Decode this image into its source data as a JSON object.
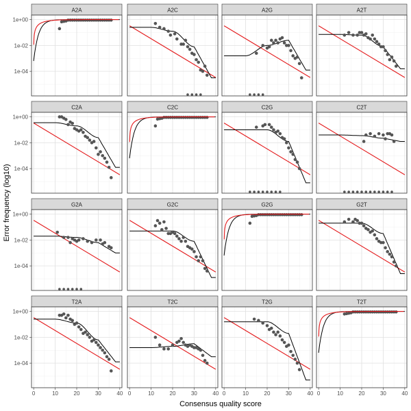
{
  "chart_data": {
    "type": "scatter",
    "xlabel": "Consensus quality score",
    "ylabel": "Error frequency (log10)",
    "x_ticks": [
      0,
      10,
      20,
      30,
      40
    ],
    "y_ticks": [
      "1e+00",
      "1e-02",
      "1e-04"
    ],
    "y_scale": "log10",
    "xlim": [
      -1,
      41
    ],
    "ylim": [
      -5.9,
      0.35
    ],
    "grid": true,
    "colors": {
      "points": "#555555",
      "fit_line": "#000000",
      "nominal_line": "#e41a1c",
      "strip": "#d9d9d9",
      "border": "#333333"
    },
    "panels": [
      {
        "name": "A2A",
        "diag": true,
        "y0": -0.7,
        "bfit": [
          0,
          0,
          0,
          0
        ]
      },
      {
        "name": "A2C",
        "diag": false,
        "y0": -0.6,
        "bfit": [
          -0.6,
          -0.9,
          -2.1,
          -4.5
        ],
        "zeros": [
          27,
          29,
          31,
          33
        ],
        "points": [
          [
            12,
            -0.3
          ],
          [
            14,
            -0.6
          ],
          [
            16,
            -0.7
          ],
          [
            18,
            -0.9
          ],
          [
            19,
            -1.2
          ],
          [
            21,
            -1.1
          ],
          [
            22,
            -1.5
          ],
          [
            24,
            -1.9
          ],
          [
            25,
            -1.9
          ],
          [
            26,
            -1.6
          ],
          [
            27,
            -2.1
          ],
          [
            28,
            -2.3
          ],
          [
            29,
            -2.6
          ],
          [
            30,
            -2.7
          ],
          [
            31,
            -3.1
          ],
          [
            32,
            -3.3
          ],
          [
            33,
            -3.9
          ],
          [
            34,
            -4.0
          ],
          [
            35,
            -3.6
          ],
          [
            36,
            -4.3
          ]
        ]
      },
      {
        "name": "A2G",
        "diag": false,
        "y0": -2.8,
        "bfit": [
          -2.8,
          -2.0,
          -1.6,
          -3.9
        ],
        "zeros": [
          12,
          14,
          16,
          18
        ],
        "points": [
          [
            15,
            -2.6
          ],
          [
            18,
            -2.0
          ],
          [
            20,
            -2.2
          ],
          [
            21,
            -2.1
          ],
          [
            22,
            -1.6
          ],
          [
            23,
            -1.8
          ],
          [
            24,
            -1.6
          ],
          [
            25,
            -1.8
          ],
          [
            26,
            -1.5
          ],
          [
            27,
            -1.4
          ],
          [
            28,
            -1.8
          ],
          [
            29,
            -2.0
          ],
          [
            30,
            -2.0
          ],
          [
            31,
            -2.4
          ],
          [
            32,
            -2.8
          ],
          [
            33,
            -3.0
          ],
          [
            34,
            -2.9
          ],
          [
            35,
            -3.4
          ],
          [
            36,
            -4.5
          ]
        ]
      },
      {
        "name": "A2T",
        "diag": false,
        "y0": -1.15,
        "bfit": [
          -1.15,
          -1.2,
          -2.1,
          -3.8
        ],
        "points": [
          [
            12,
            -1.2
          ],
          [
            14,
            -1.0
          ],
          [
            16,
            -1.2
          ],
          [
            18,
            -1.2
          ],
          [
            19,
            -1.0
          ],
          [
            20,
            -1.0
          ],
          [
            21,
            -1.2
          ],
          [
            22,
            -1.1
          ],
          [
            23,
            -1.4
          ],
          [
            24,
            -1.5
          ],
          [
            25,
            -1.2
          ],
          [
            26,
            -1.5
          ],
          [
            27,
            -1.7
          ],
          [
            28,
            -1.9
          ],
          [
            29,
            -2.1
          ],
          [
            30,
            -2.1
          ],
          [
            31,
            -2.4
          ],
          [
            32,
            -2.7
          ],
          [
            33,
            -3.1
          ],
          [
            34,
            -2.9
          ],
          [
            35,
            -3.2
          ],
          [
            36,
            -3.6
          ]
        ]
      },
      {
        "name": "C2A",
        "diag": false,
        "y0": -0.45,
        "bfit": [
          -0.45,
          -0.7,
          -1.6,
          -3.9
        ],
        "points": [
          [
            12,
            -0.0
          ],
          [
            13,
            0.0
          ],
          [
            14,
            -0.1
          ],
          [
            15,
            -0.2
          ],
          [
            16,
            -0.6
          ],
          [
            17,
            -0.4
          ],
          [
            18,
            -0.5
          ],
          [
            19,
            -0.9
          ],
          [
            20,
            -1.0
          ],
          [
            21,
            -1.1
          ],
          [
            22,
            -1.0
          ],
          [
            23,
            -1.2
          ],
          [
            24,
            -1.5
          ],
          [
            25,
            -1.6
          ],
          [
            26,
            -1.8
          ],
          [
            27,
            -2.0
          ],
          [
            28,
            -1.9
          ],
          [
            29,
            -2.4
          ],
          [
            30,
            -2.9
          ],
          [
            31,
            -2.7
          ],
          [
            32,
            -3.0
          ],
          [
            33,
            -3.2
          ],
          [
            34,
            -3.5
          ],
          [
            35,
            -3.9
          ],
          [
            36,
            -4.7
          ]
        ]
      },
      {
        "name": "C2C",
        "diag": true,
        "y0": -0.7,
        "bfit": [
          0,
          0,
          0,
          0
        ]
      },
      {
        "name": "C2G",
        "diag": false,
        "y0": -1.0,
        "bfit": [
          -1.0,
          -1.0,
          -1.9,
          -5.1
        ],
        "zeros": [
          12,
          14,
          16,
          18,
          20,
          22,
          24,
          26
        ],
        "points": [
          [
            15,
            -0.8
          ],
          [
            18,
            -0.7
          ],
          [
            19,
            -0.6
          ],
          [
            21,
            -0.6
          ],
          [
            22,
            -0.8
          ],
          [
            23,
            -1.0
          ],
          [
            24,
            -1.2
          ],
          [
            25,
            -1.1
          ],
          [
            26,
            -1.3
          ],
          [
            27,
            -1.6
          ],
          [
            28,
            -1.7
          ],
          [
            29,
            -2.0
          ],
          [
            30,
            -2.4
          ],
          [
            31,
            -2.7
          ],
          [
            32,
            -2.9
          ],
          [
            33,
            -3.3
          ],
          [
            34,
            -3.5
          ],
          [
            35,
            -4.0
          ]
        ]
      },
      {
        "name": "C2T",
        "diag": false,
        "y0": -1.4,
        "bfit": [
          -1.4,
          -1.45,
          -1.65,
          -1.9
        ],
        "zeros": [
          12,
          14,
          16,
          18,
          20,
          22,
          24,
          26,
          28,
          30,
          32,
          34
        ],
        "points": [
          [
            21,
            -1.9
          ],
          [
            22,
            -1.4
          ],
          [
            24,
            -1.3
          ],
          [
            26,
            -1.5
          ],
          [
            28,
            -1.3
          ],
          [
            30,
            -1.4
          ],
          [
            31,
            -1.7
          ],
          [
            32,
            -1.3
          ],
          [
            33,
            -1.3
          ],
          [
            34,
            -1.4
          ],
          [
            35,
            -1.9
          ]
        ]
      },
      {
        "name": "G2A",
        "diag": false,
        "y0": -1.7,
        "bfit": [
          -1.7,
          -1.8,
          -2.2,
          -3.0
        ],
        "zeros": [
          12,
          14,
          16,
          18,
          20,
          22
        ],
        "points": [
          [
            11,
            -1.4
          ],
          [
            14,
            -1.8
          ],
          [
            16,
            -1.8
          ],
          [
            17,
            -2.2
          ],
          [
            18,
            -1.9
          ],
          [
            19,
            -2.0
          ],
          [
            20,
            -2.1
          ],
          [
            21,
            -2.0
          ],
          [
            23,
            -1.9
          ],
          [
            25,
            -2.1
          ],
          [
            27,
            -2.2
          ],
          [
            29,
            -2.0
          ],
          [
            31,
            -2.0
          ],
          [
            32,
            -2.3
          ],
          [
            33,
            -2.2
          ],
          [
            35,
            -2.5
          ],
          [
            36,
            -2.6
          ]
        ]
      },
      {
        "name": "G2C",
        "diag": false,
        "y0": -1.3,
        "bfit": [
          -1.3,
          -1.3,
          -2.1,
          -4.9
        ],
        "points": [
          [
            12,
            -0.9
          ],
          [
            13,
            -0.5
          ],
          [
            14,
            -0.7
          ],
          [
            15,
            -1.2
          ],
          [
            16,
            -0.6
          ],
          [
            17,
            -1.1
          ],
          [
            18,
            -1.5
          ],
          [
            19,
            -1.5
          ],
          [
            20,
            -1.4
          ],
          [
            21,
            -1.5
          ],
          [
            22,
            -1.7
          ],
          [
            23,
            -1.9
          ],
          [
            24,
            -2.1
          ],
          [
            25,
            -1.8
          ],
          [
            26,
            -2.1
          ],
          [
            27,
            -2.5
          ],
          [
            28,
            -2.6
          ],
          [
            29,
            -2.7
          ],
          [
            30,
            -2.9
          ],
          [
            31,
            -3.3
          ],
          [
            32,
            -3.6
          ],
          [
            33,
            -3.3
          ],
          [
            34,
            -3.6
          ],
          [
            35,
            -4.2
          ],
          [
            36,
            -4.4
          ]
        ]
      },
      {
        "name": "G2G",
        "diag": true,
        "y0": -0.7,
        "bfit": [
          0,
          0,
          0,
          0
        ]
      },
      {
        "name": "G2T",
        "diag": false,
        "y0": -0.7,
        "bfit": [
          -0.7,
          -0.7,
          -1.5,
          -4.6
        ],
        "points": [
          [
            12,
            -0.6
          ],
          [
            14,
            -0.4
          ],
          [
            16,
            -0.6
          ],
          [
            17,
            -0.4
          ],
          [
            18,
            -0.5
          ],
          [
            19,
            -0.7
          ],
          [
            20,
            -0.7
          ],
          [
            21,
            -0.9
          ],
          [
            22,
            -1.1
          ],
          [
            23,
            -1.2
          ],
          [
            24,
            -1.4
          ],
          [
            25,
            -1.3
          ],
          [
            26,
            -1.6
          ],
          [
            27,
            -1.9
          ],
          [
            28,
            -2.1
          ],
          [
            29,
            -2.2
          ],
          [
            30,
            -2.2
          ],
          [
            31,
            -2.6
          ],
          [
            32,
            -2.9
          ],
          [
            33,
            -3.1
          ],
          [
            34,
            -3.3
          ],
          [
            35,
            -3.7
          ],
          [
            36,
            -4.0
          ]
        ]
      },
      {
        "name": "T2A",
        "diag": false,
        "y0": -0.6,
        "bfit": [
          -0.6,
          -0.9,
          -2.2,
          -3.9
        ],
        "points": [
          [
            12,
            -0.3
          ],
          [
            13,
            -0.3
          ],
          [
            14,
            -0.2
          ],
          [
            15,
            -0.5
          ],
          [
            16,
            -0.3
          ],
          [
            17,
            -0.6
          ],
          [
            18,
            -0.7
          ],
          [
            19,
            -1.0
          ],
          [
            20,
            -0.9
          ],
          [
            21,
            -1.2
          ],
          [
            22,
            -1.4
          ],
          [
            23,
            -1.7
          ],
          [
            24,
            -1.6
          ],
          [
            25,
            -1.8
          ],
          [
            26,
            -2.0
          ],
          [
            27,
            -2.3
          ],
          [
            28,
            -2.2
          ],
          [
            29,
            -2.4
          ],
          [
            30,
            -2.6
          ],
          [
            31,
            -2.8
          ],
          [
            32,
            -3.0
          ],
          [
            33,
            -3.2
          ],
          [
            34,
            -3.5
          ],
          [
            35,
            -3.7
          ],
          [
            36,
            -4.6
          ]
        ]
      },
      {
        "name": "T2C",
        "diag": false,
        "y0": -2.8,
        "bfit": [
          -2.8,
          -2.7,
          -2.5,
          -3.5
        ],
        "points": [
          [
            12,
            -2.0
          ],
          [
            14,
            -2.6
          ],
          [
            16,
            -2.9
          ],
          [
            18,
            -2.9
          ],
          [
            20,
            -2.6
          ],
          [
            22,
            -2.4
          ],
          [
            23,
            -2.3
          ],
          [
            24,
            -2.1
          ],
          [
            25,
            -2.4
          ],
          [
            26,
            -2.6
          ],
          [
            27,
            -2.7
          ],
          [
            28,
            -2.6
          ],
          [
            29,
            -2.7
          ],
          [
            30,
            -2.8
          ],
          [
            31,
            -2.8
          ],
          [
            32,
            -2.9
          ],
          [
            33,
            -3.0
          ],
          [
            34,
            -3.4
          ],
          [
            35,
            -3.8
          ],
          [
            36,
            -4.0
          ]
        ]
      },
      {
        "name": "T2G",
        "diag": false,
        "y0": -0.8,
        "bfit": [
          -0.8,
          -0.8,
          -1.7,
          -5.3
        ],
        "points": [
          [
            14,
            -0.6
          ],
          [
            16,
            -0.7
          ],
          [
            18,
            -0.9
          ],
          [
            20,
            -1.1
          ],
          [
            21,
            -1.4
          ],
          [
            22,
            -1.3
          ],
          [
            23,
            -1.6
          ],
          [
            24,
            -1.8
          ],
          [
            25,
            -1.6
          ],
          [
            26,
            -1.9
          ],
          [
            27,
            -2.2
          ],
          [
            28,
            -2.4
          ],
          [
            29,
            -2.7
          ],
          [
            30,
            -2.6
          ],
          [
            31,
            -3.1
          ],
          [
            32,
            -3.4
          ],
          [
            33,
            -3.7
          ],
          [
            34,
            -4.0
          ],
          [
            35,
            -4.5
          ]
        ]
      },
      {
        "name": "T2T",
        "diag": true,
        "y0": -0.25,
        "bfit": [
          0,
          0,
          0,
          0
        ]
      }
    ]
  }
}
